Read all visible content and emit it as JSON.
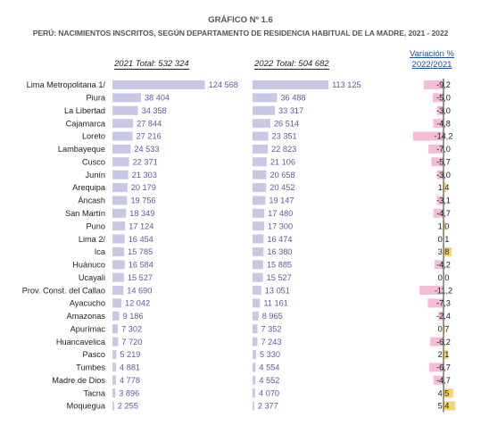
{
  "header": {
    "chart_number": "GRÁFICO Nº 1.6",
    "title": "PERÚ: NACIMIENTOS INSCRITOS, SEGÚN DEPARTAMENTO DE RESIDENCIA HABITUAL DE LA MADRE, 2021 - 2022",
    "total_2021": "2021 Total: 532 324",
    "total_2022": "2022 Total: 504 682",
    "variation_header_line1": "Variación %",
    "variation_header_line2": "2022/2021"
  },
  "colors": {
    "bar_2021_2022": "#c9c7e6",
    "variation_negative": "#f4bcd6",
    "variation_positive": "#f7d56b",
    "value_text": "#5a5aa8"
  },
  "chart_data": {
    "type": "bar",
    "orientation": "horizontal",
    "categories": [
      "Lima Metropolitana 1/",
      "Piura",
      "La Libertad",
      "Cajamarca",
      "Loreto",
      "Lambayeque",
      "Cusco",
      "Junín",
      "Arequipa",
      "Áncash",
      "San Martín",
      "Puno",
      "Lima 2/",
      "Ica",
      "Huánuco",
      "Ucayali",
      "Prov. Const. del Callao",
      "Ayacucho",
      "Amazonas",
      "Apurímac",
      "Huancavelica",
      "Pasco",
      "Tumbes",
      "Madre de Dios",
      "Tacna",
      "Moquegua"
    ],
    "series": [
      {
        "name": "2021",
        "values": [
          124568,
          38404,
          34358,
          27844,
          27216,
          24533,
          22371,
          21303,
          20179,
          19756,
          18349,
          17124,
          16454,
          15785,
          16584,
          15527,
          14690,
          12042,
          9186,
          7302,
          7720,
          5219,
          4881,
          4778,
          3896,
          2255
        ],
        "labels": [
          "124 568",
          "38 404",
          "34 358",
          "27 844",
          "27 216",
          "24 533",
          "22 371",
          "21 303",
          "20 179",
          "19 756",
          "18 349",
          "17 124",
          "16 454",
          "15 785",
          "16 584",
          "15 527",
          "14 690",
          "12 042",
          "9 186",
          "7 302",
          "7 720",
          "5 219",
          "4 881",
          "4 778",
          "3 896",
          "2 255"
        ]
      },
      {
        "name": "2022",
        "values": [
          113125,
          36488,
          33317,
          26514,
          23351,
          22823,
          21106,
          20658,
          20452,
          19147,
          17480,
          17300,
          16474,
          16380,
          15885,
          15527,
          13051,
          11161,
          8965,
          7352,
          7243,
          5330,
          4554,
          4552,
          4070,
          2377
        ],
        "labels": [
          "113 125",
          "36 488",
          "33 317",
          "26 514",
          "23 351",
          "22 823",
          "21 106",
          "20 658",
          "20 452",
          "19 147",
          "17 480",
          "17 300",
          "16 474",
          "16 380",
          "15 885",
          "15 527",
          "13 051",
          "11 161",
          "8 965",
          "7 352",
          "7 243",
          "5 330",
          "4 554",
          "4 552",
          "4 070",
          "2 377"
        ]
      },
      {
        "name": "Variación % 2022/2021",
        "values": [
          -9.2,
          -5.0,
          -3.0,
          -4.8,
          -14.2,
          -7.0,
          -5.7,
          -3.0,
          1.4,
          -3.1,
          -4.7,
          1.0,
          0.1,
          3.8,
          -4.2,
          0.0,
          -11.2,
          -7.3,
          -2.4,
          0.7,
          -6.2,
          2.1,
          -6.7,
          -4.7,
          4.5,
          5.4
        ],
        "labels": [
          "-9,2",
          "-5,0",
          "-3,0",
          "-4,8",
          "-14,2",
          "-7,0",
          "-5,7",
          "-3,0",
          "1,4",
          "-3,1",
          "-4,7",
          "1,0",
          "0,1",
          "3,8",
          "-4,2",
          "0,0",
          "-11,2",
          "-7,3",
          "-2,4",
          "0,7",
          "-6,2",
          "2,1",
          "-6,7",
          "-4,7",
          "4,5",
          "5,4"
        ]
      }
    ],
    "title": "PERÚ: NACIMIENTOS INSCRITOS, SEGÚN DEPARTAMENTO DE RESIDENCIA HABITUAL DE LA MADRE, 2021 - 2022",
    "xlim_counts": [
      0,
      125000
    ],
    "xlim_variation": [
      -15,
      6
    ],
    "grid": false
  }
}
